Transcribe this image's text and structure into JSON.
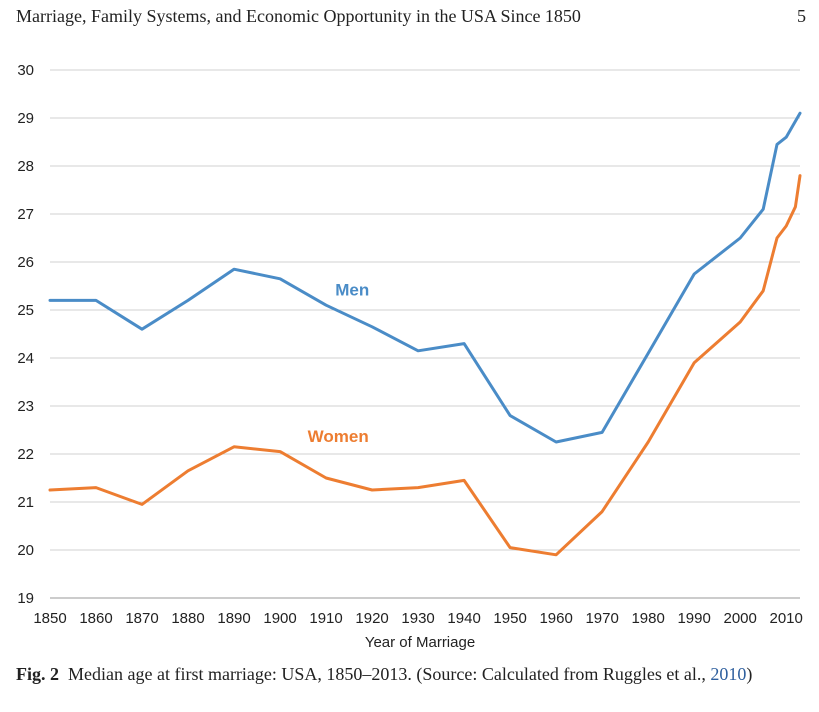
{
  "header": {
    "running_title": "Marriage, Family Systems, and Economic Opportunity in the USA Since 1850",
    "page_number": "5"
  },
  "caption": {
    "label": "Fig. 2",
    "text_before_year": "Median age at first marriage: USA, 1850–2013. (Source: Calculated from Ruggles et al., ",
    "year": "2010",
    "text_after_year": ")"
  },
  "chart_data": {
    "type": "line",
    "title": "",
    "xlabel": "Year of Marriage",
    "ylabel": "",
    "xlim": [
      1850,
      2013
    ],
    "ylim": [
      19,
      30
    ],
    "x_ticks": [
      1850,
      1860,
      1870,
      1880,
      1890,
      1900,
      1910,
      1920,
      1930,
      1940,
      1950,
      1960,
      1970,
      1980,
      1990,
      2000,
      2010
    ],
    "y_ticks": [
      19,
      20,
      21,
      22,
      23,
      24,
      25,
      26,
      27,
      28,
      29,
      30
    ],
    "grid": "horizontal",
    "legend": "inline labels",
    "series": [
      {
        "name": "Men",
        "color": "#4a8cc7",
        "label_at": [
          1912,
          25.3
        ],
        "points": [
          [
            1850,
            25.2
          ],
          [
            1860,
            25.2
          ],
          [
            1870,
            24.6
          ],
          [
            1880,
            25.2
          ],
          [
            1890,
            25.85
          ],
          [
            1900,
            25.65
          ],
          [
            1910,
            25.1
          ],
          [
            1920,
            24.65
          ],
          [
            1930,
            24.15
          ],
          [
            1940,
            24.3
          ],
          [
            1950,
            22.8
          ],
          [
            1960,
            22.25
          ],
          [
            1970,
            22.45
          ],
          [
            1980,
            24.1
          ],
          [
            1990,
            25.75
          ],
          [
            2000,
            26.5
          ],
          [
            2005,
            27.1
          ],
          [
            2008,
            28.45
          ],
          [
            2010,
            28.6
          ],
          [
            2013,
            29.1
          ]
        ]
      },
      {
        "name": "Women",
        "color": "#ed7d31",
        "label_at": [
          1906,
          22.25
        ],
        "points": [
          [
            1850,
            21.25
          ],
          [
            1860,
            21.3
          ],
          [
            1870,
            20.95
          ],
          [
            1880,
            21.65
          ],
          [
            1890,
            22.15
          ],
          [
            1900,
            22.05
          ],
          [
            1910,
            21.5
          ],
          [
            1920,
            21.25
          ],
          [
            1930,
            21.3
          ],
          [
            1940,
            21.45
          ],
          [
            1950,
            20.05
          ],
          [
            1960,
            19.9
          ],
          [
            1970,
            20.8
          ],
          [
            1980,
            22.25
          ],
          [
            1990,
            23.9
          ],
          [
            2000,
            24.75
          ],
          [
            2005,
            25.4
          ],
          [
            2008,
            26.5
          ],
          [
            2010,
            26.75
          ],
          [
            2012,
            27.15
          ],
          [
            2013,
            27.8
          ]
        ]
      }
    ]
  }
}
